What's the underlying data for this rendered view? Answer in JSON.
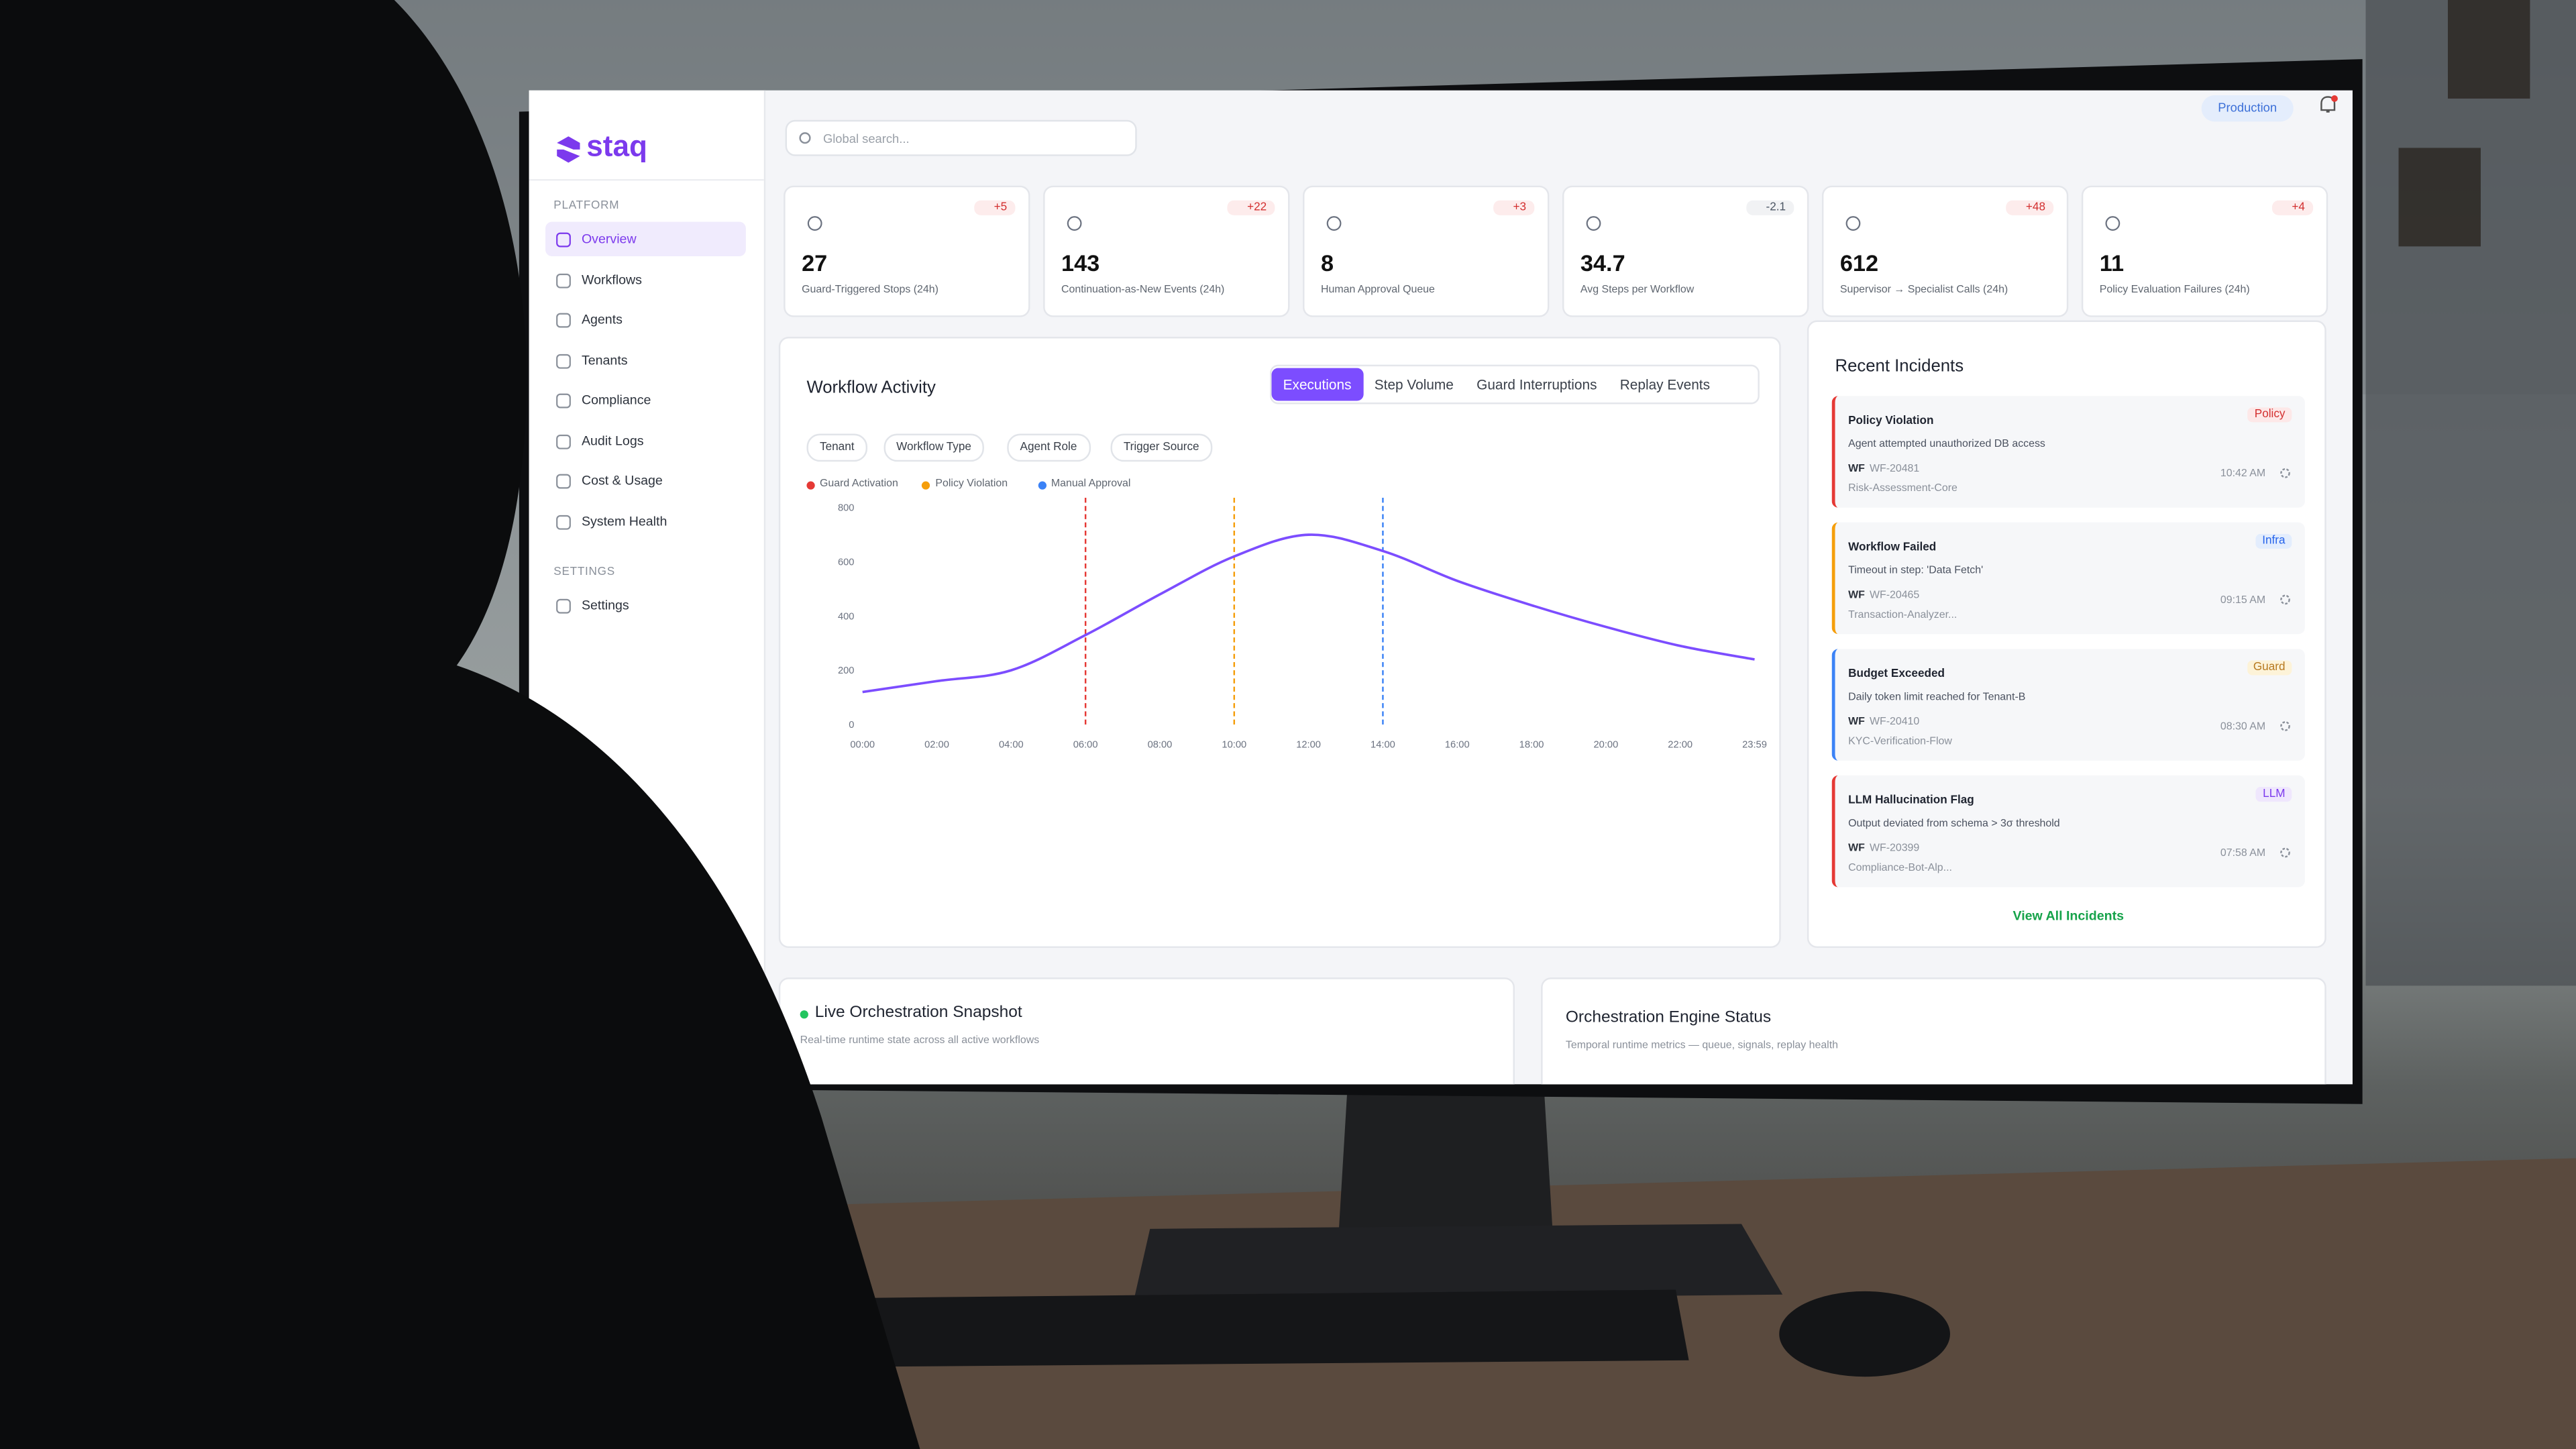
{
  "brand": "staq",
  "search_placeholder": "Global search...",
  "environment": "Production",
  "sidebar": [
    {
      "title": "PLATFORM",
      "items": [
        "Overview",
        "Workflows",
        "Agents",
        "Tenants",
        "Compliance",
        "Audit Logs",
        "Cost & Usage",
        "System Health"
      ]
    },
    {
      "title": "SETTINGS",
      "items": [
        "Settings"
      ]
    }
  ],
  "kpis": [
    {
      "value": "27",
      "delta": "+5",
      "label": "Guard-Triggered Stops (24h)"
    },
    {
      "value": "143",
      "delta": "+22",
      "label": "Continuation-as-New Events (24h)"
    },
    {
      "value": "8",
      "delta": "+3",
      "label": "Human Approval Queue"
    },
    {
      "value": "34.7",
      "delta": "-2.1",
      "label": "Avg Steps per Workflow"
    },
    {
      "value": "612",
      "delta": "+48",
      "label": "Supervisor → Specialist Calls (24h)"
    },
    {
      "value": "11",
      "delta": "+4",
      "label": "Policy Evaluation Failures (24h)"
    }
  ],
  "chart": {
    "type": "line",
    "title": "Workflow Activity",
    "tabs": [
      "Executions",
      "Step Volume",
      "Guard Interruptions",
      "Replay Events"
    ],
    "filters": [
      "Tenant",
      "Workflow Type",
      "Agent Role",
      "Trigger Source"
    ],
    "events": [
      {
        "name": "Guard Activation",
        "color": "#e53935",
        "at": "06:00"
      },
      {
        "name": "Policy Violation",
        "color": "#f59e0b",
        "at": "10:00"
      },
      {
        "name": "Manual Approval",
        "color": "#3b82f6",
        "at": "14:00"
      }
    ],
    "categories": [
      "00:00",
      "02:00",
      "04:00",
      "06:00",
      "08:00",
      "10:00",
      "12:00",
      "14:00",
      "16:00",
      "18:00",
      "20:00",
      "22:00",
      "23:59"
    ],
    "values": [
      120,
      160,
      200,
      330,
      480,
      620,
      700,
      640,
      530,
      440,
      360,
      290,
      240
    ],
    "color": "#7c4dff",
    "ylim": [
      0,
      800
    ],
    "yticks": [
      0,
      200,
      400,
      600,
      800
    ]
  },
  "incidents": {
    "title": "Recent Incidents",
    "items": [
      {
        "title": "Policy Violation",
        "tag": "Policy",
        "accent": "#e53935",
        "tag_color": "#d32f2f",
        "tag_bg": "#fde8e8",
        "description": "Agent attempted unauthorized DB access",
        "label": "WF",
        "id": "WF-20481",
        "workflow": "Risk-Assessment-Core",
        "time": "10:42 AM"
      },
      {
        "title": "Workflow Failed",
        "tag": "Infra",
        "accent": "#f59e0b",
        "tag_color": "#2563eb",
        "tag_bg": "#e3edfd",
        "description": "Timeout in step: 'Data Fetch'",
        "label": "WF",
        "id": "WF-20465",
        "workflow": "Transaction-Analyzer...",
        "time": "09:15 AM"
      },
      {
        "title": "Budget Exceeded",
        "tag": "Guard",
        "accent": "#3b82f6",
        "tag_color": "#b7791f",
        "tag_bg": "#fdf3d8",
        "description": "Daily token limit reached for Tenant-B",
        "label": "WF",
        "id": "WF-20410",
        "workflow": "KYC-Verification-Flow",
        "time": "08:30 AM"
      },
      {
        "title": "LLM Hallucination Flag",
        "tag": "LLM",
        "accent": "#e53935",
        "tag_color": "#7c3aed",
        "tag_bg": "#efe7fd",
        "description": "Output deviated from schema > 3σ threshold",
        "label": "WF",
        "id": "WF-20399",
        "workflow": "Compliance-Bot-Alp...",
        "time": "07:58 AM"
      }
    ],
    "link": "View All Incidents"
  },
  "panels": [
    {
      "title": "Live Orchestration Snapshot",
      "subtitle": "Real-time runtime state across all active workflows"
    },
    {
      "title": "Orchestration Engine Status",
      "subtitle": "Temporal runtime metrics — queue, signals, replay health"
    }
  ]
}
